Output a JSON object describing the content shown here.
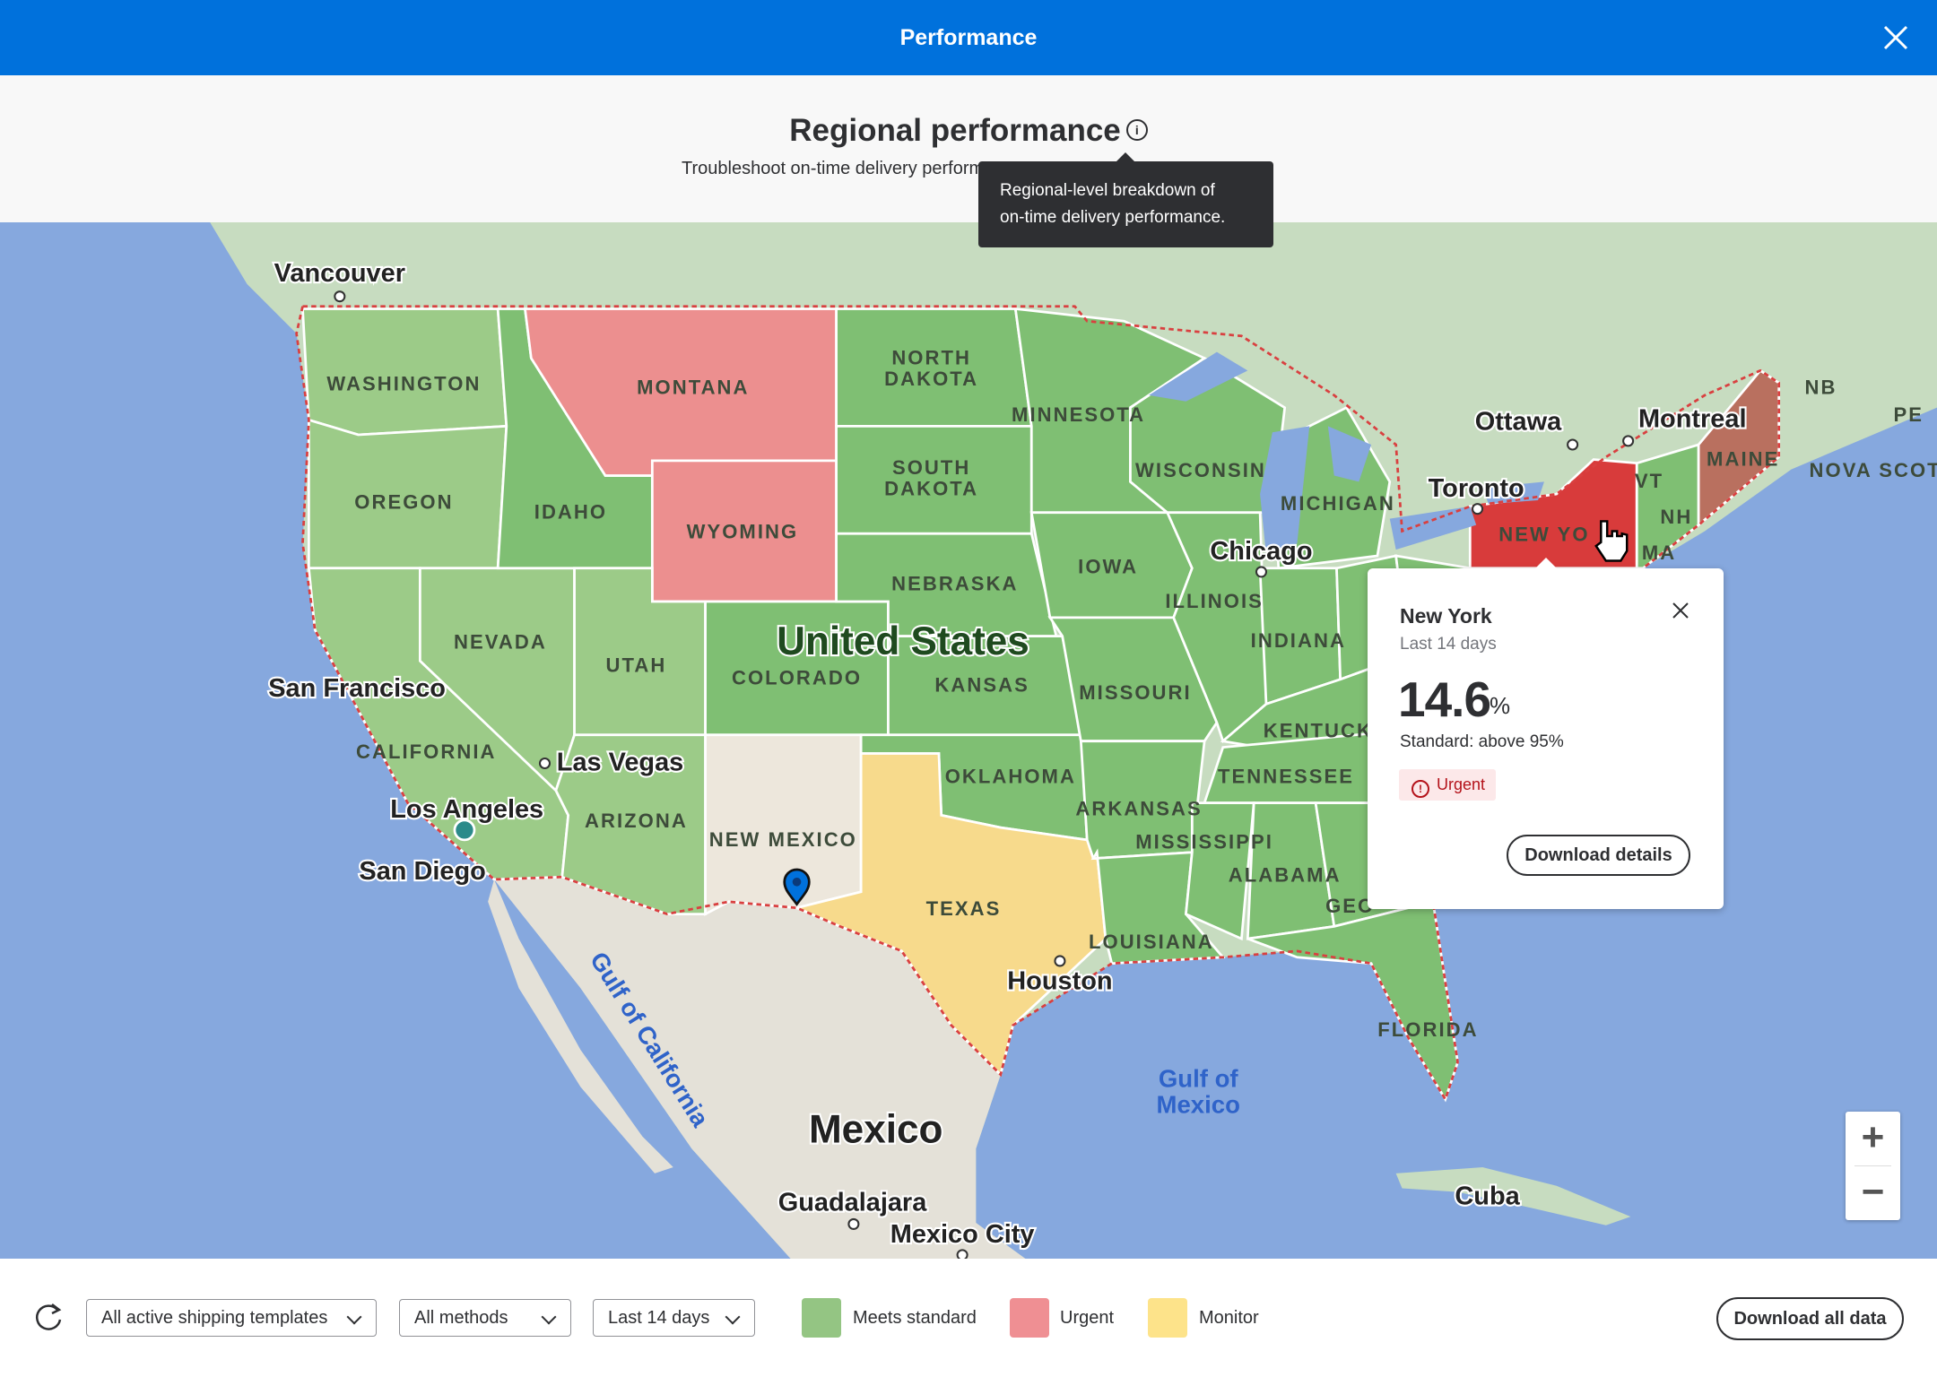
{
  "header": {
    "title": "Performance",
    "close_icon": "close-icon"
  },
  "subheader": {
    "title": "Regional performance",
    "info_icon": "i",
    "subtitle": "Troubleshoot on-time delivery performance"
  },
  "tooltip": {
    "line1": "Regional-level breakdown of",
    "line2": "on-time delivery performance."
  },
  "map": {
    "state_colors": {
      "meets": "#7fbf73",
      "urgent": "#ec8f8f",
      "monitor": "#f7da8c",
      "no_data": "#ede7dc",
      "urgent_selected": "#d83b3b"
    },
    "cities": [
      "Vancouver",
      "San Francisco",
      "Las Vegas",
      "Los Angeles",
      "San Diego",
      "Ottawa",
      "Montreal",
      "Toronto",
      "Chicago",
      "Houston",
      "Guadalajara",
      "Mexico City",
      "Cuba"
    ],
    "countries": [
      "United States",
      "Mexico"
    ],
    "states": [
      "WASHINGTON",
      "OREGON",
      "CALIFORNIA",
      "NEVADA",
      "IDAHO",
      "MONTANA",
      "WYOMING",
      "UTAH",
      "ARIZONA",
      "COLORADO",
      "NEW MEXICO",
      "NORTH",
      "DAKOTA",
      "SOUTH",
      "DAKOTA",
      "NEBRASKA",
      "KANSAS",
      "OKLAHOMA",
      "TEXAS",
      "MINNESOTA",
      "IOWA",
      "MISSOURI",
      "ARKANSAS",
      "LOUISIANA",
      "WISCONSIN",
      "ILLINOIS",
      "MICHIGAN",
      "INDIANA",
      "KENTUCK",
      "TENNESSEE",
      "MISSISSIPPI",
      "ALABAMA",
      "GEO",
      "FLORIDA",
      "NEW YO",
      "VT",
      "NH",
      "MA",
      "MAINE",
      "NB",
      "PE",
      "NOVA SCOT"
    ],
    "water": [
      "Gulf of California",
      "Gulf of",
      "Mexico"
    ],
    "zoom_in": "+",
    "zoom_out": "−"
  },
  "popup": {
    "region": "New York",
    "period": "Last 14 days",
    "value": "14.6",
    "unit": "%",
    "standard": "Standard: above 95%",
    "status": "Urgent",
    "download_label": "Download details"
  },
  "footer": {
    "filters": [
      {
        "value": "All active shipping templates"
      },
      {
        "value": "All methods"
      },
      {
        "value": "Last 14 days"
      }
    ],
    "legend": [
      {
        "label": "Meets standard",
        "color": "#94c583"
      },
      {
        "label": "Urgent",
        "color": "#ef8f93"
      },
      {
        "label": "Monitor",
        "color": "#fde38a"
      }
    ],
    "download_all_label": "Download all data"
  }
}
